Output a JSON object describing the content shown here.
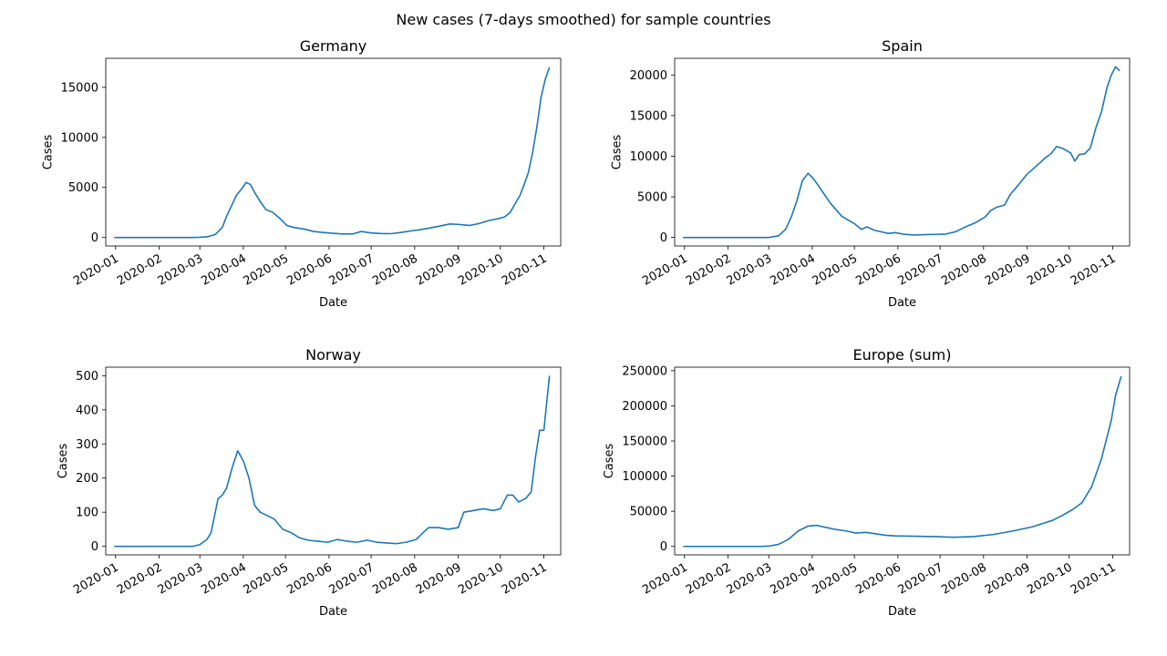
{
  "figure": {
    "title": "New cases (7-days smoothed) for sample countries"
  },
  "chart_data": [
    {
      "type": "line",
      "title": "Germany",
      "xlabel": "Date",
      "ylabel": "Cases",
      "xlim": [
        "2019-12-25",
        "2020-11-13"
      ],
      "ylim": [
        -850,
        17900
      ],
      "yticks": [
        0,
        5000,
        10000,
        15000
      ],
      "xticks": [
        "2020-01",
        "2020-02",
        "2020-03",
        "2020-04",
        "2020-05",
        "2020-06",
        "2020-07",
        "2020-08",
        "2020-09",
        "2020-10",
        "2020-11"
      ],
      "series": [
        {
          "color": "#1f77b4",
          "points": [
            [
              "2019-12-31",
              0
            ],
            [
              "2020-02-24",
              0
            ],
            [
              "2020-03-01",
              20
            ],
            [
              "2020-03-07",
              90
            ],
            [
              "2020-03-12",
              300
            ],
            [
              "2020-03-17",
              1000
            ],
            [
              "2020-03-20",
              2100
            ],
            [
              "2020-03-24",
              3300
            ],
            [
              "2020-03-27",
              4200
            ],
            [
              "2020-03-31",
              4900
            ],
            [
              "2020-04-03",
              5500
            ],
            [
              "2020-04-06",
              5300
            ],
            [
              "2020-04-09",
              4500
            ],
            [
              "2020-04-13",
              3600
            ],
            [
              "2020-04-17",
              2800
            ],
            [
              "2020-04-22",
              2500
            ],
            [
              "2020-04-27",
              1900
            ],
            [
              "2020-05-02",
              1200
            ],
            [
              "2020-05-07",
              1000
            ],
            [
              "2020-05-14",
              850
            ],
            [
              "2020-05-21",
              600
            ],
            [
              "2020-05-28",
              500
            ],
            [
              "2020-06-04",
              420
            ],
            [
              "2020-06-11",
              350
            ],
            [
              "2020-06-18",
              360
            ],
            [
              "2020-06-24",
              600
            ],
            [
              "2020-07-01",
              450
            ],
            [
              "2020-07-08",
              400
            ],
            [
              "2020-07-15",
              380
            ],
            [
              "2020-07-22",
              500
            ],
            [
              "2020-07-29",
              650
            ],
            [
              "2020-08-05",
              780
            ],
            [
              "2020-08-12",
              950
            ],
            [
              "2020-08-19",
              1150
            ],
            [
              "2020-08-26",
              1350
            ],
            [
              "2020-09-02",
              1300
            ],
            [
              "2020-09-09",
              1200
            ],
            [
              "2020-09-16",
              1400
            ],
            [
              "2020-09-23",
              1700
            ],
            [
              "2020-09-30",
              1900
            ],
            [
              "2020-10-04",
              2050
            ],
            [
              "2020-10-08",
              2500
            ],
            [
              "2020-10-12",
              3500
            ],
            [
              "2020-10-15",
              4200
            ],
            [
              "2020-10-18",
              5300
            ],
            [
              "2020-10-21",
              6500
            ],
            [
              "2020-10-24",
              8500
            ],
            [
              "2020-10-27",
              11000
            ],
            [
              "2020-10-30",
              14000
            ],
            [
              "2020-11-02",
              15800
            ],
            [
              "2020-11-05",
              17000
            ]
          ]
        }
      ]
    },
    {
      "type": "line",
      "title": "Spain",
      "xlabel": "Date",
      "ylabel": "Cases",
      "xlim": [
        "2019-12-25",
        "2020-11-13"
      ],
      "ylim": [
        -1050,
        22050
      ],
      "yticks": [
        0,
        5000,
        10000,
        15000,
        20000
      ],
      "xticks": [
        "2020-01",
        "2020-02",
        "2020-03",
        "2020-04",
        "2020-05",
        "2020-06",
        "2020-07",
        "2020-08",
        "2020-09",
        "2020-10",
        "2020-11"
      ],
      "series": [
        {
          "color": "#1f77b4",
          "points": [
            [
              "2019-12-31",
              0
            ],
            [
              "2020-03-01",
              0
            ],
            [
              "2020-03-08",
              200
            ],
            [
              "2020-03-13",
              1000
            ],
            [
              "2020-03-17",
              2500
            ],
            [
              "2020-03-21",
              4500
            ],
            [
              "2020-03-25",
              7000
            ],
            [
              "2020-03-29",
              7900
            ],
            [
              "2020-04-02",
              7200
            ],
            [
              "2020-04-06",
              6200
            ],
            [
              "2020-04-10",
              5200
            ],
            [
              "2020-04-14",
              4200
            ],
            [
              "2020-04-18",
              3400
            ],
            [
              "2020-04-22",
              2600
            ],
            [
              "2020-04-26",
              2200
            ],
            [
              "2020-05-01",
              1700
            ],
            [
              "2020-05-06",
              1000
            ],
            [
              "2020-05-10",
              1300
            ],
            [
              "2020-05-15",
              900
            ],
            [
              "2020-05-20",
              700
            ],
            [
              "2020-05-25",
              500
            ],
            [
              "2020-05-30",
              600
            ],
            [
              "2020-06-05",
              400
            ],
            [
              "2020-06-12",
              300
            ],
            [
              "2020-06-20",
              350
            ],
            [
              "2020-06-28",
              380
            ],
            [
              "2020-07-05",
              420
            ],
            [
              "2020-07-12",
              700
            ],
            [
              "2020-07-19",
              1300
            ],
            [
              "2020-07-26",
              1800
            ],
            [
              "2020-08-02",
              2500
            ],
            [
              "2020-08-06",
              3300
            ],
            [
              "2020-08-10",
              3700
            ],
            [
              "2020-08-16",
              4000
            ],
            [
              "2020-08-20",
              5300
            ],
            [
              "2020-08-26",
              6500
            ],
            [
              "2020-09-01",
              7800
            ],
            [
              "2020-09-07",
              8700
            ],
            [
              "2020-09-14",
              9800
            ],
            [
              "2020-09-18",
              10300
            ],
            [
              "2020-09-22",
              11200
            ],
            [
              "2020-09-27",
              10900
            ],
            [
              "2020-10-02",
              10400
            ],
            [
              "2020-10-05",
              9400
            ],
            [
              "2020-10-08",
              10200
            ],
            [
              "2020-10-12",
              10300
            ],
            [
              "2020-10-16",
              11000
            ],
            [
              "2020-10-20",
              13500
            ],
            [
              "2020-10-24",
              15500
            ],
            [
              "2020-10-28",
              18500
            ],
            [
              "2020-10-31",
              20000
            ],
            [
              "2020-11-03",
              21000
            ],
            [
              "2020-11-06",
              20500
            ]
          ]
        }
      ]
    },
    {
      "type": "line",
      "title": "Norway",
      "xlabel": "Date",
      "ylabel": "Cases",
      "xlim": [
        "2019-12-25",
        "2020-11-13"
      ],
      "ylim": [
        -25,
        525
      ],
      "yticks": [
        0,
        100,
        200,
        300,
        400,
        500
      ],
      "xticks": [
        "2020-01",
        "2020-02",
        "2020-03",
        "2020-04",
        "2020-05",
        "2020-06",
        "2020-07",
        "2020-08",
        "2020-09",
        "2020-10",
        "2020-11"
      ],
      "series": [
        {
          "color": "#1f77b4",
          "points": [
            [
              "2019-12-31",
              0
            ],
            [
              "2020-02-25",
              0
            ],
            [
              "2020-03-01",
              5
            ],
            [
              "2020-03-06",
              20
            ],
            [
              "2020-03-09",
              40
            ],
            [
              "2020-03-11",
              80
            ],
            [
              "2020-03-14",
              140
            ],
            [
              "2020-03-17",
              150
            ],
            [
              "2020-03-20",
              170
            ],
            [
              "2020-03-24",
              230
            ],
            [
              "2020-03-28",
              280
            ],
            [
              "2020-04-01",
              250
            ],
            [
              "2020-04-05",
              200
            ],
            [
              "2020-04-09",
              120
            ],
            [
              "2020-04-13",
              100
            ],
            [
              "2020-04-18",
              90
            ],
            [
              "2020-04-23",
              80
            ],
            [
              "2020-04-29",
              50
            ],
            [
              "2020-05-05",
              40
            ],
            [
              "2020-05-11",
              25
            ],
            [
              "2020-05-17",
              18
            ],
            [
              "2020-05-24",
              15
            ],
            [
              "2020-05-31",
              12
            ],
            [
              "2020-06-07",
              20
            ],
            [
              "2020-06-14",
              15
            ],
            [
              "2020-06-21",
              12
            ],
            [
              "2020-06-28",
              18
            ],
            [
              "2020-07-05",
              12
            ],
            [
              "2020-07-12",
              10
            ],
            [
              "2020-07-19",
              8
            ],
            [
              "2020-07-26",
              12
            ],
            [
              "2020-08-02",
              20
            ],
            [
              "2020-08-07",
              40
            ],
            [
              "2020-08-11",
              55
            ],
            [
              "2020-08-18",
              55
            ],
            [
              "2020-08-25",
              50
            ],
            [
              "2020-09-01",
              55
            ],
            [
              "2020-09-05",
              100
            ],
            [
              "2020-09-12",
              105
            ],
            [
              "2020-09-19",
              110
            ],
            [
              "2020-09-26",
              105
            ],
            [
              "2020-10-01",
              110
            ],
            [
              "2020-10-06",
              150
            ],
            [
              "2020-10-10",
              150
            ],
            [
              "2020-10-14",
              130
            ],
            [
              "2020-10-19",
              140
            ],
            [
              "2020-10-23",
              160
            ],
            [
              "2020-10-26",
              260
            ],
            [
              "2020-10-29",
              340
            ],
            [
              "2020-11-01",
              340
            ],
            [
              "2020-11-03",
              420
            ],
            [
              "2020-11-05",
              500
            ]
          ]
        }
      ]
    },
    {
      "type": "line",
      "title": "Europe (sum)",
      "xlabel": "Date",
      "ylabel": "Cases",
      "xlim": [
        "2019-12-25",
        "2020-11-13"
      ],
      "ylim": [
        -12000,
        255000
      ],
      "yticks": [
        0,
        50000,
        100000,
        150000,
        200000,
        250000
      ],
      "xticks": [
        "2020-01",
        "2020-02",
        "2020-03",
        "2020-04",
        "2020-05",
        "2020-06",
        "2020-07",
        "2020-08",
        "2020-09",
        "2020-10",
        "2020-11"
      ],
      "series": [
        {
          "color": "#1f77b4",
          "points": [
            [
              "2019-12-31",
              0
            ],
            [
              "2020-02-24",
              0
            ],
            [
              "2020-03-01",
              500
            ],
            [
              "2020-03-08",
              3000
            ],
            [
              "2020-03-15",
              10000
            ],
            [
              "2020-03-22",
              22000
            ],
            [
              "2020-03-29",
              29000
            ],
            [
              "2020-04-04",
              30000
            ],
            [
              "2020-04-11",
              27000
            ],
            [
              "2020-04-18",
              24000
            ],
            [
              "2020-04-25",
              22000
            ],
            [
              "2020-05-02",
              19000
            ],
            [
              "2020-05-09",
              20000
            ],
            [
              "2020-05-16",
              18000
            ],
            [
              "2020-05-23",
              16000
            ],
            [
              "2020-05-30",
              15000
            ],
            [
              "2020-06-13",
              14500
            ],
            [
              "2020-06-27",
              14000
            ],
            [
              "2020-07-11",
              13000
            ],
            [
              "2020-07-25",
              14000
            ],
            [
              "2020-08-08",
              17000
            ],
            [
              "2020-08-22",
              22000
            ],
            [
              "2020-09-05",
              28000
            ],
            [
              "2020-09-19",
              37000
            ],
            [
              "2020-09-26",
              44000
            ],
            [
              "2020-10-03",
              52000
            ],
            [
              "2020-10-10",
              62000
            ],
            [
              "2020-10-17",
              85000
            ],
            [
              "2020-10-24",
              125000
            ],
            [
              "2020-10-31",
              180000
            ],
            [
              "2020-11-03",
              215000
            ],
            [
              "2020-11-07",
              242000
            ]
          ]
        }
      ]
    }
  ]
}
